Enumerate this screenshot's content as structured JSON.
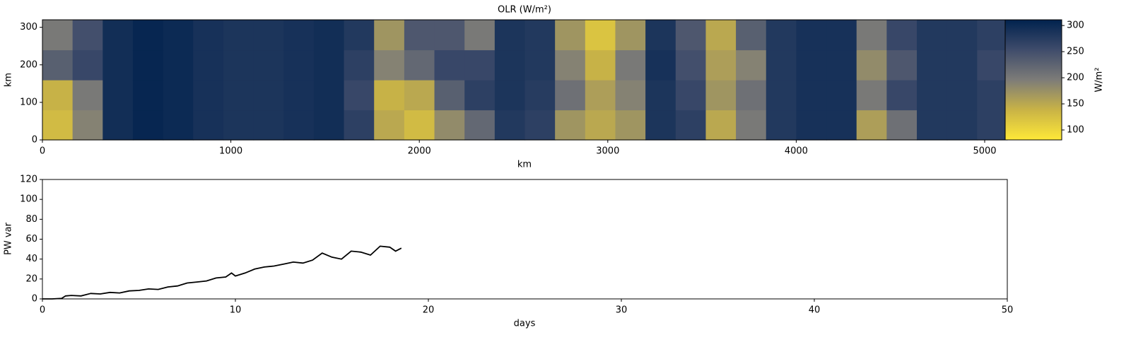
{
  "chart_data": [
    {
      "type": "heatmap",
      "title": "OLR (W/m²)",
      "x_label": "km",
      "y_label": "km",
      "xlim": [
        0,
        5120
      ],
      "ylim": [
        0,
        320
      ],
      "xticks": [
        0,
        1000,
        2000,
        3000,
        4000,
        5000
      ],
      "yticks": [
        0,
        100,
        200,
        300
      ],
      "z": [
        [
          130,
          190,
          295,
          305,
          300,
          290,
          285,
          285,
          290,
          295,
          270,
          150,
          130,
          180,
          220,
          280,
          270,
          170,
          150,
          170,
          285,
          270,
          150,
          200,
          280,
          290,
          290,
          160,
          210,
          280,
          280,
          270
        ],
        [
          140,
          200,
          295,
          305,
          300,
          290,
          285,
          285,
          290,
          295,
          260,
          140,
          150,
          230,
          270,
          285,
          275,
          210,
          160,
          190,
          285,
          260,
          170,
          210,
          280,
          290,
          290,
          200,
          260,
          280,
          280,
          270
        ],
        [
          230,
          260,
          295,
          305,
          300,
          290,
          285,
          285,
          290,
          295,
          270,
          190,
          220,
          260,
          260,
          285,
          280,
          190,
          140,
          200,
          290,
          250,
          160,
          190,
          280,
          290,
          290,
          180,
          240,
          280,
          280,
          260
        ],
        [
          200,
          250,
          295,
          305,
          300,
          290,
          285,
          285,
          290,
          295,
          280,
          170,
          240,
          240,
          200,
          285,
          280,
          170,
          120,
          170,
          285,
          240,
          150,
          230,
          280,
          290,
          290,
          200,
          260,
          280,
          280,
          270
        ]
      ],
      "colorbar": {
        "label": "W/m²",
        "lim": [
          81,
          311
        ],
        "ticks": [
          100,
          150,
          200,
          250,
          300
        ],
        "colormap": [
          "#fee838",
          "#c9b346",
          "#7d7c78",
          "#3f4c6b",
          "#00224e"
        ]
      }
    },
    {
      "type": "line",
      "x_label": "days",
      "y_label": "PW var",
      "xlim": [
        0,
        50
      ],
      "ylim": [
        0,
        120
      ],
      "xticks": [
        0,
        10,
        20,
        30,
        40,
        50
      ],
      "yticks": [
        0,
        20,
        40,
        60,
        80,
        100,
        120
      ],
      "color": "#000000",
      "x": [
        0,
        0.5,
        1,
        1.2,
        1.5,
        2,
        2.5,
        3,
        3.5,
        4,
        4.5,
        5,
        5.5,
        6,
        6.5,
        7,
        7.5,
        8,
        8.5,
        9,
        9.5,
        9.8,
        10,
        10.5,
        11,
        11.5,
        12,
        12.5,
        13,
        13.5,
        14,
        14.5,
        15,
        15.5,
        16,
        16.5,
        17,
        17.5,
        18,
        18.3,
        18.6
      ],
      "values": [
        0,
        0,
        0.5,
        3,
        3.5,
        3,
        5.5,
        5,
        6.5,
        6,
        8,
        8.5,
        10,
        9.5,
        12,
        13,
        16,
        17,
        18,
        21,
        22,
        26,
        23,
        26,
        30,
        32,
        33,
        35,
        37,
        36,
        39,
        46,
        42,
        40,
        48,
        47,
        44,
        53,
        52,
        48,
        51
      ]
    }
  ]
}
